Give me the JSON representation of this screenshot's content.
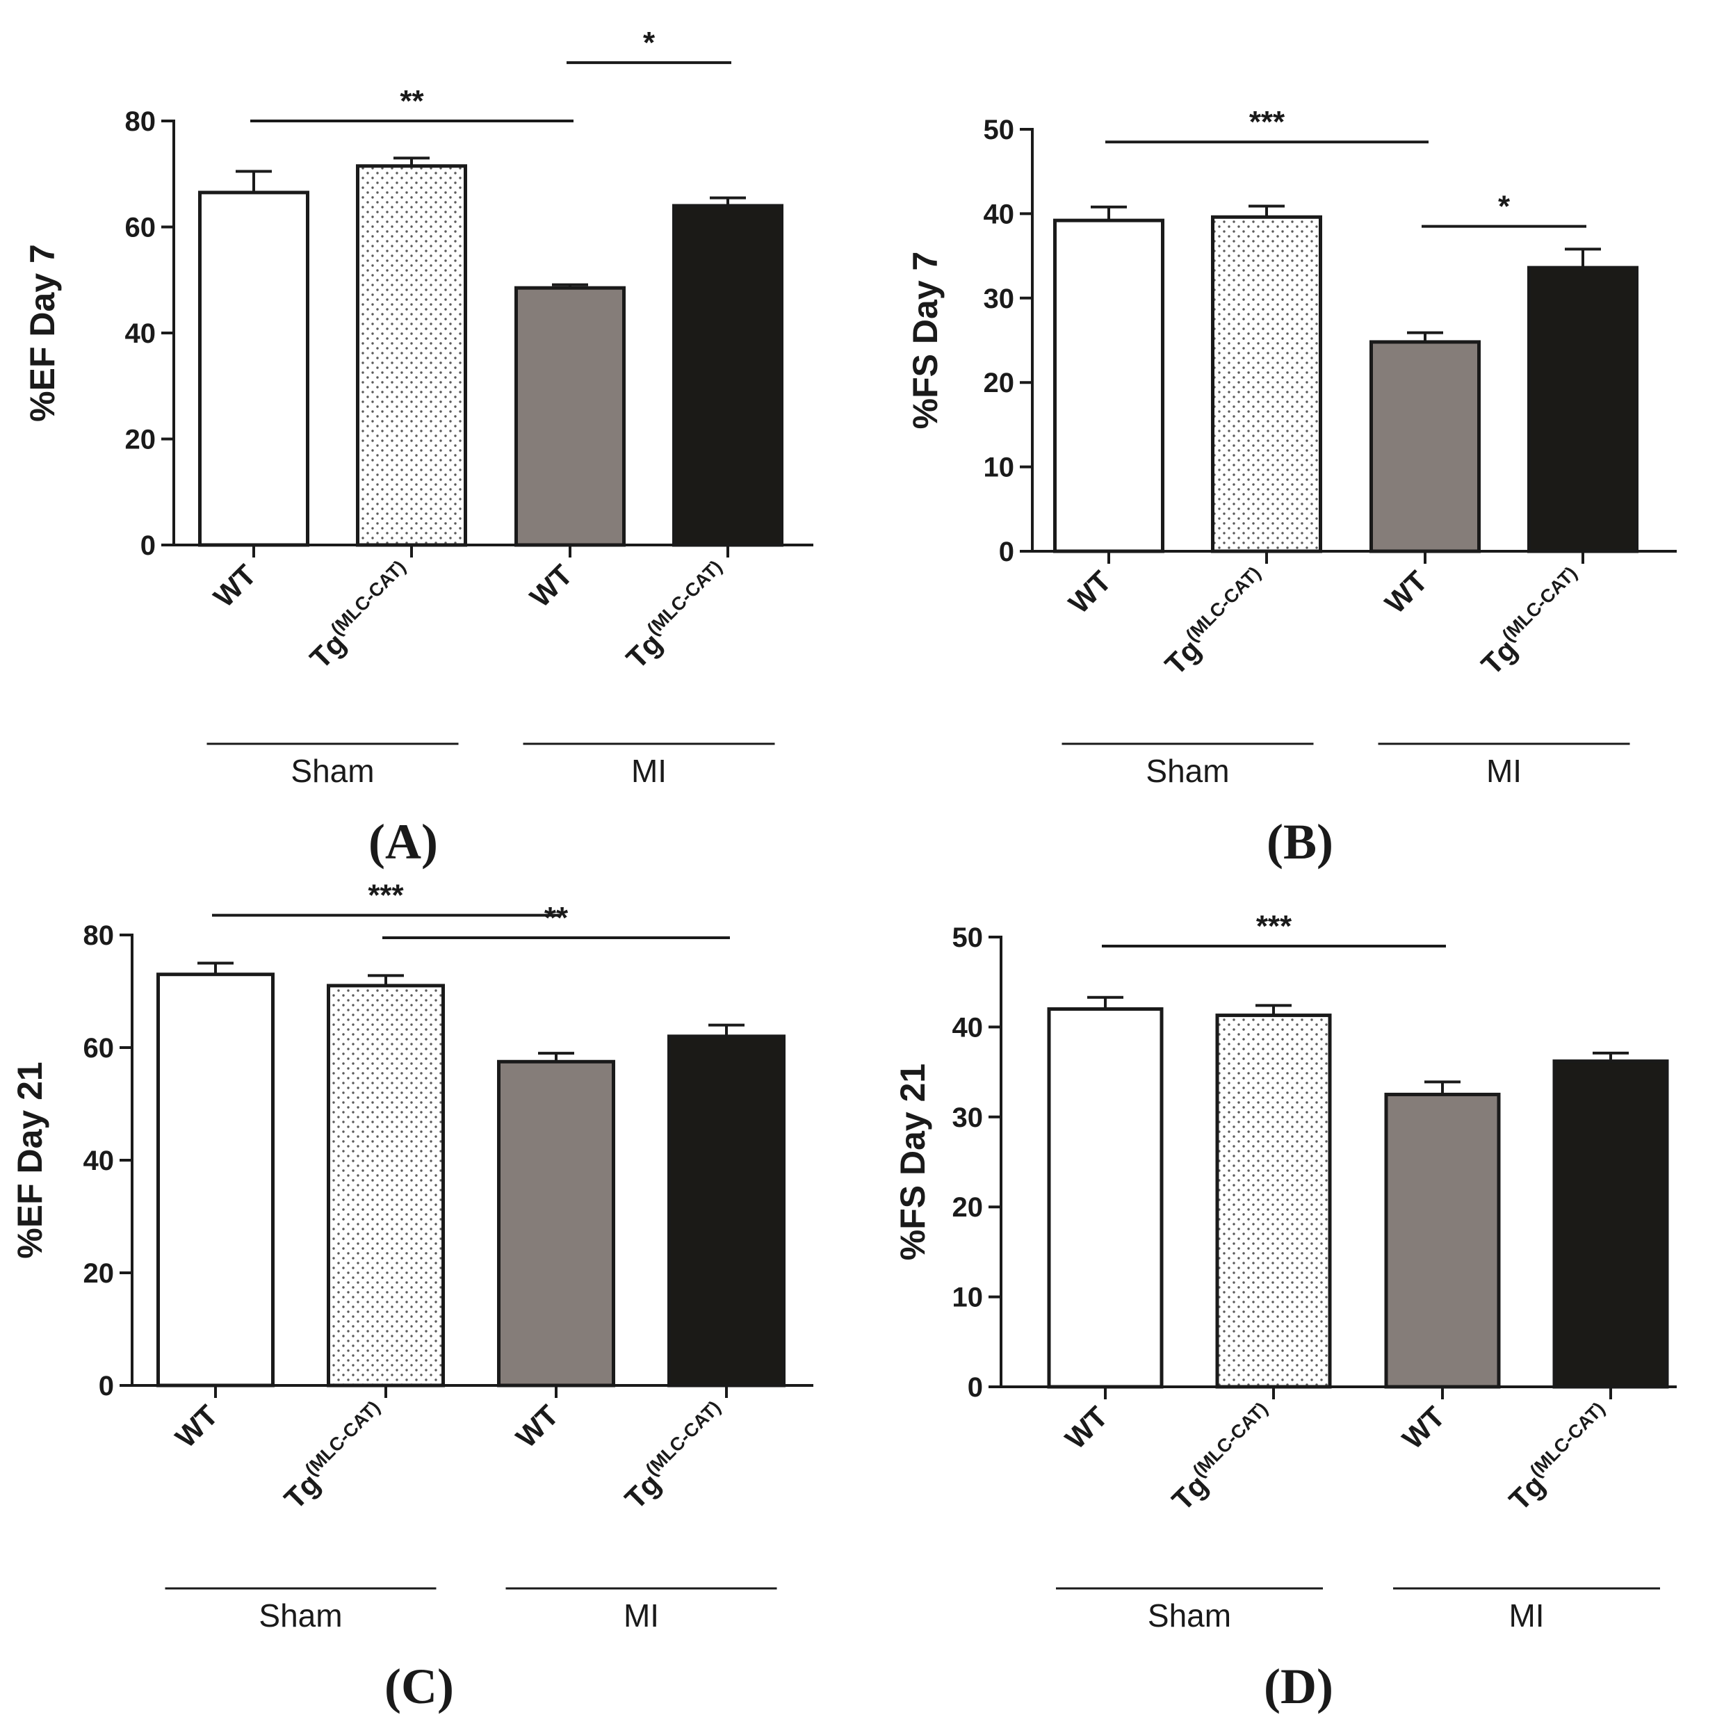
{
  "chart_data": [
    {
      "type": "bar",
      "panel": "(A)",
      "ylabel": "%EF  Day 7",
      "ylim": [
        0,
        80
      ],
      "yticks": [
        0,
        20,
        40,
        60,
        80
      ],
      "categories": [
        {
          "main": "WT",
          "sup": ""
        },
        {
          "main": "Tg",
          "sup": "(MLC-CAT)"
        },
        {
          "main": "WT",
          "sup": ""
        },
        {
          "main": "Tg",
          "sup": "(MLC-CAT)"
        }
      ],
      "groups": [
        {
          "name": "Sham",
          "span": [
            0,
            1
          ]
        },
        {
          "name": "MI",
          "span": [
            2,
            3
          ]
        }
      ],
      "values": [
        66.5,
        71.5,
        48.5,
        64
      ],
      "errors": [
        4,
        1.5,
        0.6,
        1.5
      ],
      "fills": [
        "white",
        "dots",
        "gray",
        "black"
      ],
      "significance": [
        {
          "from": 0,
          "to": 2,
          "label": "**",
          "level": 80
        },
        {
          "from": 2,
          "to": 3,
          "label": "*",
          "level": 91
        }
      ]
    },
    {
      "type": "bar",
      "panel": "(B)",
      "ylabel": "%FS  Day 7",
      "ylim": [
        0,
        50
      ],
      "yticks": [
        0,
        10,
        20,
        30,
        40,
        50
      ],
      "categories": [
        {
          "main": "WT",
          "sup": ""
        },
        {
          "main": "Tg",
          "sup": "(MLC-CAT)"
        },
        {
          "main": "WT",
          "sup": ""
        },
        {
          "main": "Tg",
          "sup": "(MLC-CAT)"
        }
      ],
      "groups": [
        {
          "name": "Sham",
          "span": [
            0,
            1
          ]
        },
        {
          "name": "MI",
          "span": [
            2,
            3
          ]
        }
      ],
      "values": [
        39.2,
        39.6,
        24.8,
        33.6
      ],
      "errors": [
        1.6,
        1.3,
        1.1,
        2.2
      ],
      "fills": [
        "white",
        "dots",
        "gray",
        "black"
      ],
      "significance": [
        {
          "from": 0,
          "to": 2,
          "label": "***",
          "level": 48.5
        },
        {
          "from": 2,
          "to": 3,
          "label": "*",
          "level": 38.5
        }
      ]
    },
    {
      "type": "bar",
      "panel": "(C)",
      "ylabel": "%EF  Day 21",
      "ylim": [
        0,
        80
      ],
      "yticks": [
        0,
        20,
        40,
        60,
        80
      ],
      "categories": [
        {
          "main": "WT",
          "sup": ""
        },
        {
          "main": "Tg",
          "sup": "(MLC-CAT)"
        },
        {
          "main": "WT",
          "sup": ""
        },
        {
          "main": "Tg",
          "sup": "(MLC-CAT)"
        }
      ],
      "groups": [
        {
          "name": "Sham",
          "span": [
            0,
            1
          ]
        },
        {
          "name": "MI",
          "span": [
            2,
            3
          ]
        }
      ],
      "values": [
        73,
        71,
        57.5,
        62
      ],
      "errors": [
        2,
        1.8,
        1.5,
        2
      ],
      "fills": [
        "white",
        "dots",
        "gray",
        "black"
      ],
      "significance": [
        {
          "from": 0,
          "to": 2,
          "label": "***",
          "level": 83.5
        },
        {
          "from": 1,
          "to": 3,
          "label": "**",
          "level": 79.5
        }
      ]
    },
    {
      "type": "bar",
      "panel": "(D)",
      "ylabel": "%FS  Day 21",
      "ylim": [
        0,
        50
      ],
      "yticks": [
        0,
        10,
        20,
        30,
        40,
        50
      ],
      "categories": [
        {
          "main": "WT",
          "sup": ""
        },
        {
          "main": "Tg",
          "sup": "(MLC-CAT)"
        },
        {
          "main": "WT",
          "sup": ""
        },
        {
          "main": "Tg",
          "sup": "(MLC-CAT)"
        }
      ],
      "groups": [
        {
          "name": "Sham",
          "span": [
            0,
            1
          ]
        },
        {
          "name": "MI",
          "span": [
            2,
            3
          ]
        }
      ],
      "values": [
        42,
        41.3,
        32.5,
        36.2
      ],
      "errors": [
        1.3,
        1.1,
        1.4,
        0.9
      ],
      "fills": [
        "white",
        "dots",
        "gray",
        "black"
      ],
      "significance": [
        {
          "from": 0,
          "to": 2,
          "label": "***",
          "level": 49
        }
      ]
    }
  ],
  "colors": {
    "axis": "#1a1a1a",
    "gray_bar": "#857d79",
    "black_bar": "#1b1a17",
    "dot": "#5a5a5a"
  }
}
